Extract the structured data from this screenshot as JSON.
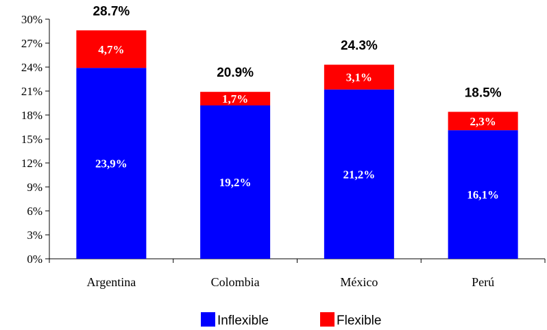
{
  "chart_data": {
    "type": "bar",
    "stacked": true,
    "categories": [
      "Argentina",
      "Colombia",
      "México",
      "Perú"
    ],
    "series": [
      {
        "name": "Inflexible",
        "color": "#0000ff",
        "values": [
          23.9,
          19.2,
          21.2,
          16.1
        ],
        "labels": [
          "23,9%",
          "19,2%",
          "21,2%",
          "16,1%"
        ]
      },
      {
        "name": "Flexible",
        "color": "#ff0000",
        "values": [
          4.7,
          1.7,
          3.1,
          2.3
        ],
        "labels": [
          "4,7%",
          "1,7%",
          "3,1%",
          "2,3%"
        ]
      }
    ],
    "totals": [
      "28.7%",
      "20.9%",
      "24.3%",
      "18.5%"
    ],
    "yticks": [
      "0%",
      "3%",
      "6%",
      "9%",
      "12%",
      "15%",
      "18%",
      "21%",
      "24%",
      "27%",
      "30%"
    ],
    "ylim": [
      0,
      30
    ],
    "grid": false,
    "legend_position": "bottom"
  }
}
